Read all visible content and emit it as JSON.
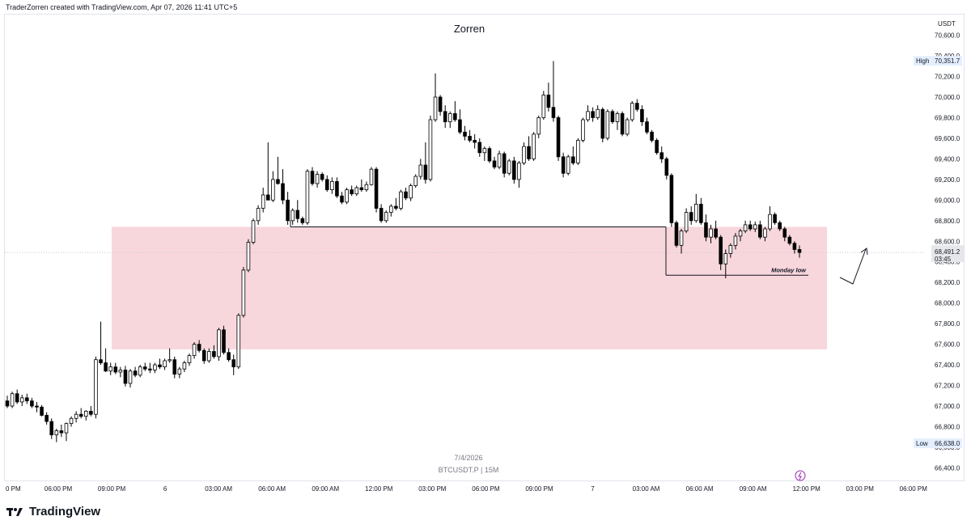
{
  "header": {
    "attribution": "TraderZorren created with TradingView.com, Apr 07, 2026 11:41 UTC+5"
  },
  "footer": {
    "brand": "TradingView"
  },
  "chart_data": {
    "type": "candlestick",
    "title": "Zorren",
    "symbol_label": "BTCUSDT.P | 15M",
    "date_label": "7/4/2026",
    "currency": "USDT",
    "ylim": [
      66300,
      70800
    ],
    "y_ticks": [
      66400,
      66600,
      66800,
      67000,
      67200,
      67400,
      67600,
      67800,
      68000,
      68200,
      68400,
      68600,
      68800,
      69000,
      69200,
      69400,
      69600,
      69800,
      70000,
      70200,
      70400,
      70600
    ],
    "y_tick_labels": [
      "66,400.0",
      "66,600.0",
      "66,800.0",
      "67,000.0",
      "67,200.0",
      "67,400.0",
      "67,600.0",
      "67,800.0",
      "68,000.0",
      "68,200.0",
      "68,400.0",
      "68,600.0",
      "68,800.0",
      "69,000.0",
      "69,200.0",
      "69,400.0",
      "69,600.0",
      "69,800.0",
      "70,000.0",
      "70,200.0",
      "70,400.0",
      "70,600.0"
    ],
    "x_labels": [
      "0 PM",
      "06:00 PM",
      "09:00 PM",
      "6",
      "03:00 AM",
      "06:00 AM",
      "09:00 AM",
      "12:00 PM",
      "03:00 PM",
      "06:00 PM",
      "09:00 PM",
      "7",
      "03:00 AM",
      "06:00 AM",
      "09:00 AM",
      "12:00 PM",
      "03:00 PM",
      "06:00 PM"
    ],
    "high": {
      "label": "High",
      "value": 70351.7,
      "text": "70,351.7"
    },
    "low": {
      "label": "Low",
      "value": 66638.0,
      "text": "66,638.0"
    },
    "last": {
      "value": 68491.2,
      "text": "68,491.2",
      "countdown": "03:45"
    },
    "zone": {
      "from": 67550,
      "to": 68740,
      "color": "#f8d7dc"
    },
    "level_line": 68740,
    "monday_low": {
      "value": 68270,
      "label": "Monday low"
    },
    "up_color": "#ffffff",
    "down_color": "#000000",
    "ohlc": [
      [
        67050,
        67100,
        66980,
        67000
      ],
      [
        67000,
        67140,
        66980,
        67120
      ],
      [
        67120,
        67160,
        67020,
        67040
      ],
      [
        67040,
        67110,
        67000,
        67080
      ],
      [
        67080,
        67120,
        67020,
        67050
      ],
      [
        67050,
        67080,
        66980,
        67000
      ],
      [
        67000,
        67040,
        66940,
        66990
      ],
      [
        66990,
        67010,
        66900,
        66910
      ],
      [
        66910,
        66940,
        66820,
        66850
      ],
      [
        66850,
        66880,
        66680,
        66720
      ],
      [
        66720,
        66780,
        66650,
        66760
      ],
      [
        66760,
        66820,
        66700,
        66740
      ],
      [
        66740,
        66840,
        66660,
        66830
      ],
      [
        66830,
        66900,
        66800,
        66880
      ],
      [
        66880,
        66950,
        66840,
        66920
      ],
      [
        66920,
        66980,
        66880,
        66900
      ],
      [
        66900,
        66960,
        66860,
        66950
      ],
      [
        66950,
        67000,
        66900,
        66920
      ],
      [
        66920,
        67480,
        66880,
        67450
      ],
      [
        67450,
        67820,
        67400,
        67420
      ],
      [
        67420,
        67560,
        67330,
        67340
      ],
      [
        67340,
        67420,
        67300,
        67380
      ],
      [
        67380,
        67420,
        67310,
        67330
      ],
      [
        67330,
        67380,
        67280,
        67350
      ],
      [
        67350,
        67390,
        67190,
        67220
      ],
      [
        67220,
        67360,
        67180,
        67340
      ],
      [
        67340,
        67380,
        67280,
        67300
      ],
      [
        67300,
        67400,
        67280,
        67380
      ],
      [
        67380,
        67420,
        67340,
        67360
      ],
      [
        67360,
        67420,
        67320,
        67350
      ],
      [
        67350,
        67420,
        67320,
        67400
      ],
      [
        67400,
        67460,
        67360,
        67380
      ],
      [
        67380,
        67460,
        67350,
        67440
      ],
      [
        67440,
        67560,
        67420,
        67450
      ],
      [
        67450,
        67480,
        67270,
        67310
      ],
      [
        67310,
        67380,
        67270,
        67360
      ],
      [
        67360,
        67440,
        67330,
        67420
      ],
      [
        67420,
        67510,
        67390,
        67490
      ],
      [
        67490,
        67620,
        67460,
        67600
      ],
      [
        67600,
        67640,
        67520,
        67540
      ],
      [
        67540,
        67560,
        67410,
        67440
      ],
      [
        67440,
        67560,
        67420,
        67530
      ],
      [
        67530,
        67590,
        67460,
        67480
      ],
      [
        67480,
        67760,
        67440,
        67740
      ],
      [
        67740,
        67780,
        67500,
        67520
      ],
      [
        67520,
        67560,
        67430,
        67450
      ],
      [
        67450,
        67500,
        67300,
        67380
      ],
      [
        67380,
        67900,
        67360,
        67880
      ],
      [
        67880,
        68350,
        67860,
        68320
      ],
      [
        68320,
        68620,
        68300,
        68590
      ],
      [
        68590,
        68820,
        68570,
        68800
      ],
      [
        68800,
        68950,
        68760,
        68920
      ],
      [
        68920,
        69120,
        68880,
        69050
      ],
      [
        69050,
        69560,
        69000,
        69000
      ],
      [
        69000,
        69280,
        68980,
        69200
      ],
      [
        69200,
        69420,
        69150,
        69160
      ],
      [
        69160,
        69300,
        68960,
        69000
      ],
      [
        69000,
        69080,
        68760,
        68800
      ],
      [
        68800,
        68920,
        68760,
        68900
      ],
      [
        68900,
        69000,
        68780,
        68820
      ],
      [
        68820,
        68840,
        68760,
        68780
      ],
      [
        68780,
        69300,
        68760,
        69280
      ],
      [
        69280,
        69320,
        69140,
        69160
      ],
      [
        69160,
        69280,
        69120,
        69250
      ],
      [
        69250,
        69270,
        69180,
        69200
      ],
      [
        69200,
        69240,
        69080,
        69100
      ],
      [
        69100,
        69220,
        69060,
        69180
      ],
      [
        69180,
        69220,
        69020,
        69040
      ],
      [
        69040,
        69080,
        68960,
        68980
      ],
      [
        68980,
        69120,
        68960,
        69100
      ],
      [
        69100,
        69140,
        69040,
        69060
      ],
      [
        69060,
        69140,
        69040,
        69120
      ],
      [
        69120,
        69200,
        69080,
        69100
      ],
      [
        69100,
        69180,
        69080,
        69150
      ],
      [
        69150,
        69320,
        69140,
        69300
      ],
      [
        69300,
        69320,
        68880,
        68920
      ],
      [
        68920,
        68960,
        68780,
        68800
      ],
      [
        68800,
        68900,
        68780,
        68880
      ],
      [
        68880,
        68960,
        68840,
        68940
      ],
      [
        68940,
        69020,
        68900,
        68920
      ],
      [
        68920,
        69100,
        68900,
        69080
      ],
      [
        69080,
        69120,
        69000,
        69020
      ],
      [
        69020,
        69160,
        68990,
        69140
      ],
      [
        69140,
        69250,
        69120,
        69230
      ],
      [
        69230,
        69400,
        69200,
        69340
      ],
      [
        69340,
        69560,
        69160,
        69200
      ],
      [
        69200,
        69820,
        69180,
        69780
      ],
      [
        69780,
        70230,
        69760,
        70000
      ],
      [
        70000,
        70020,
        69820,
        69860
      ],
      [
        69860,
        69920,
        69700,
        69760
      ],
      [
        69760,
        69860,
        69700,
        69840
      ],
      [
        69840,
        69960,
        69760,
        69780
      ],
      [
        69780,
        69880,
        69640,
        69660
      ],
      [
        69660,
        69720,
        69580,
        69620
      ],
      [
        69620,
        69680,
        69560,
        69580
      ],
      [
        69580,
        69640,
        69500,
        69560
      ],
      [
        69560,
        69600,
        69420,
        69460
      ],
      [
        69460,
        69520,
        69380,
        69500
      ],
      [
        69500,
        69520,
        69360,
        69380
      ],
      [
        69380,
        69420,
        69300,
        69320
      ],
      [
        69320,
        69480,
        69300,
        69450
      ],
      [
        69450,
        69470,
        69220,
        69260
      ],
      [
        69260,
        69400,
        69240,
        69380
      ],
      [
        69380,
        69420,
        69160,
        69200
      ],
      [
        69200,
        69380,
        69120,
        69360
      ],
      [
        69360,
        69560,
        69340,
        69520
      ],
      [
        69520,
        69620,
        69380,
        69400
      ],
      [
        69400,
        69660,
        69380,
        69640
      ],
      [
        69640,
        69820,
        69600,
        69800
      ],
      [
        69800,
        70060,
        69780,
        70020
      ],
      [
        70020,
        70140,
        69860,
        69900
      ],
      [
        69900,
        70350,
        69760,
        69800
      ],
      [
        69800,
        69820,
        69380,
        69420
      ],
      [
        69420,
        69460,
        69220,
        69260
      ],
      [
        69260,
        69440,
        69240,
        69420
      ],
      [
        69420,
        69520,
        69340,
        69360
      ],
      [
        69360,
        69600,
        69340,
        69580
      ],
      [
        69580,
        69800,
        69560,
        69780
      ],
      [
        69780,
        69920,
        69760,
        69860
      ],
      [
        69860,
        69900,
        69760,
        69800
      ],
      [
        69800,
        69920,
        69780,
        69880
      ],
      [
        69880,
        69900,
        69560,
        69600
      ],
      [
        69600,
        69880,
        69580,
        69860
      ],
      [
        69860,
        69880,
        69740,
        69760
      ],
      [
        69760,
        69860,
        69680,
        69840
      ],
      [
        69840,
        69860,
        69620,
        69640
      ],
      [
        69640,
        69800,
        69620,
        69780
      ],
      [
        69780,
        69960,
        69760,
        69940
      ],
      [
        69940,
        69980,
        69860,
        69880
      ],
      [
        69880,
        69920,
        69720,
        69760
      ],
      [
        69760,
        69800,
        69640,
        69660
      ],
      [
        69660,
        69680,
        69560,
        69580
      ],
      [
        69580,
        69600,
        69440,
        69460
      ],
      [
        69460,
        69520,
        69360,
        69400
      ],
      [
        69400,
        69420,
        69200,
        69240
      ],
      [
        69240,
        69260,
        68740,
        68780
      ],
      [
        68780,
        68800,
        68540,
        68560
      ],
      [
        68560,
        68720,
        68480,
        68700
      ],
      [
        68700,
        68920,
        68680,
        68880
      ],
      [
        68880,
        68940,
        68760,
        68800
      ],
      [
        68800,
        69060,
        68780,
        68960
      ],
      [
        68960,
        69020,
        68760,
        68780
      ],
      [
        68780,
        68860,
        68600,
        68640
      ],
      [
        68640,
        68760,
        68580,
        68720
      ],
      [
        68720,
        68800,
        68620,
        68640
      ],
      [
        68640,
        68660,
        68320,
        68380
      ],
      [
        68380,
        68520,
        68240,
        68480
      ],
      [
        68480,
        68580,
        68440,
        68560
      ],
      [
        68560,
        68680,
        68520,
        68650
      ],
      [
        68650,
        68720,
        68600,
        68700
      ],
      [
        68700,
        68800,
        68680,
        68760
      ],
      [
        68760,
        68800,
        68700,
        68720
      ],
      [
        68720,
        68790,
        68690,
        68760
      ],
      [
        68760,
        68800,
        68620,
        68640
      ],
      [
        68640,
        68740,
        68600,
        68720
      ],
      [
        68720,
        68940,
        68700,
        68860
      ],
      [
        68860,
        68880,
        68760,
        68780
      ],
      [
        68780,
        68800,
        68700,
        68720
      ],
      [
        68720,
        68740,
        68600,
        68640
      ],
      [
        68640,
        68660,
        68560,
        68580
      ],
      [
        68580,
        68600,
        68480,
        68520
      ],
      [
        68520,
        68560,
        68440,
        68491.2
      ]
    ]
  }
}
